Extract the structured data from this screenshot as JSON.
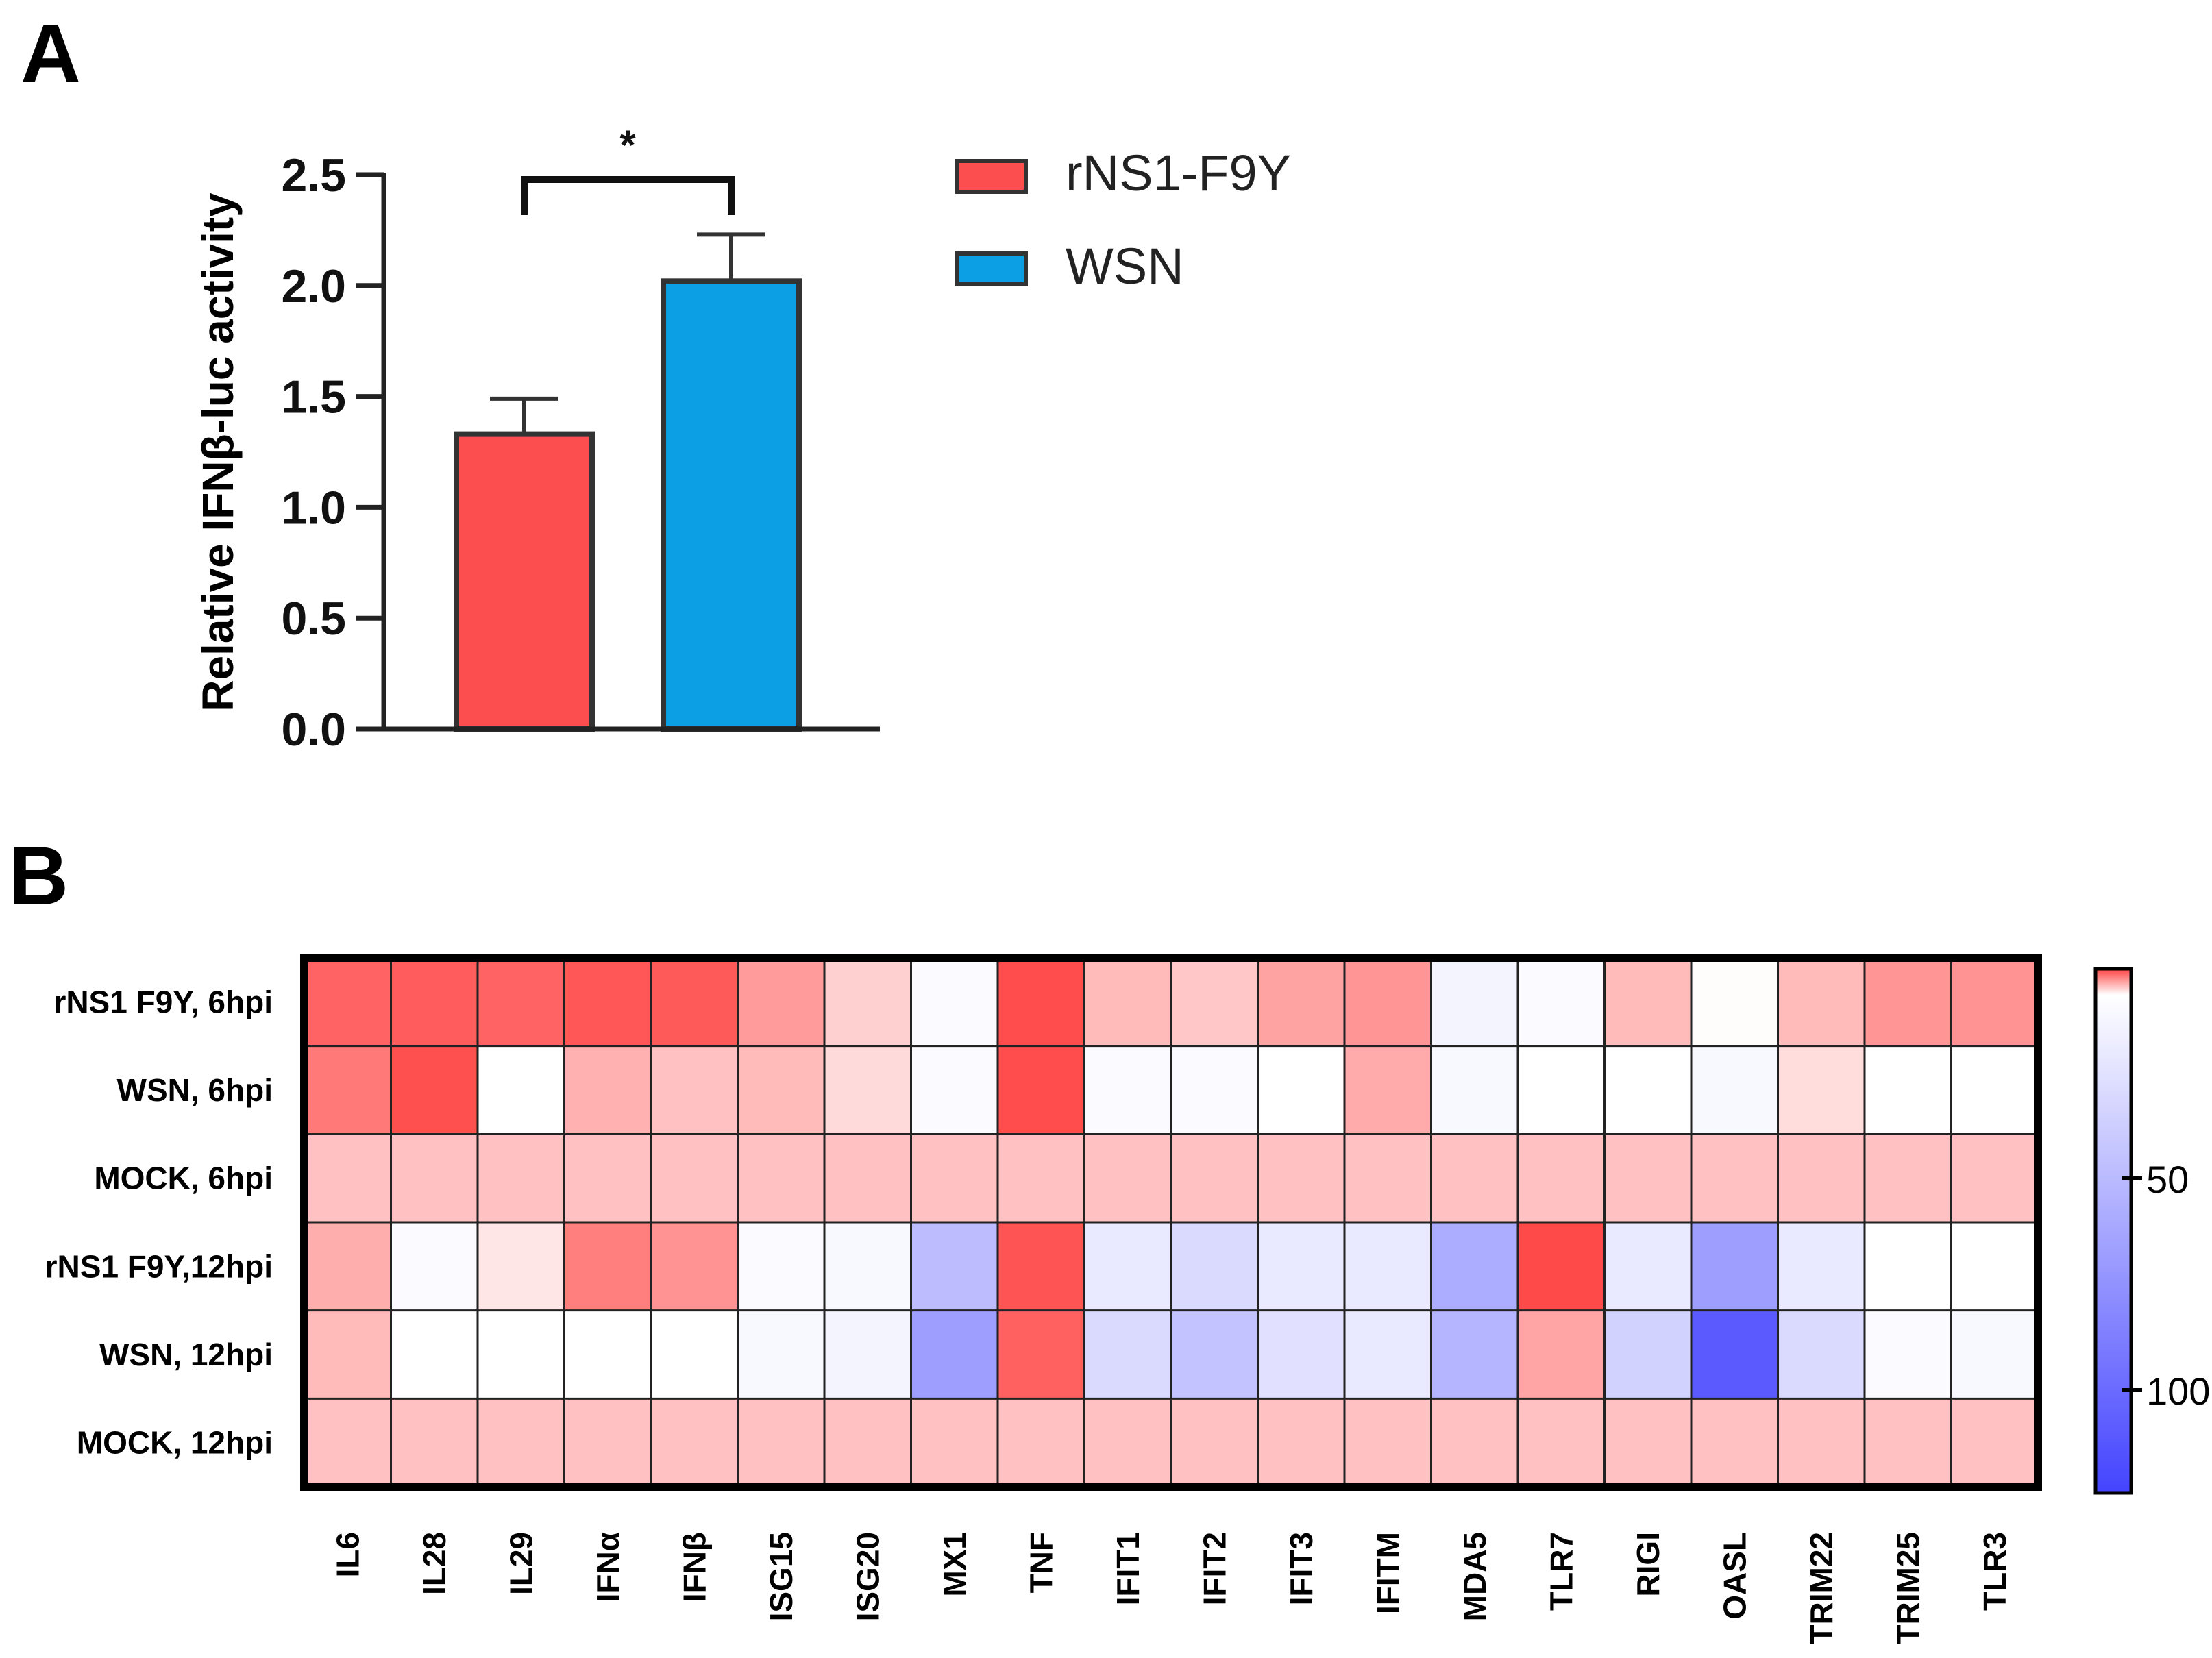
{
  "panels": {
    "a_label": "A",
    "b_label": "B"
  },
  "chart_data": [
    {
      "type": "bar",
      "panel": "A",
      "ylabel": "Relative IFNβ-luc activity",
      "ylim": [
        0,
        2.5
      ],
      "yticks": [
        0,
        0.5,
        1.0,
        1.5,
        2.0,
        2.5
      ],
      "ytick_labels": [
        "0.0",
        "0.5",
        "1.0",
        "1.5",
        "2.0",
        "2.5"
      ],
      "categories": [
        "rNS1-F9Y",
        "WSN"
      ],
      "values": [
        1.33,
        2.02
      ],
      "errors": [
        0.16,
        0.21
      ],
      "colors": [
        "#fc4d4f",
        "#0c9fe3"
      ],
      "legend": [
        "rNS1-F9Y",
        "WSN"
      ],
      "significance": "*"
    },
    {
      "type": "heatmap",
      "panel": "B",
      "rows": [
        "rNS1 F9Y, 6hpi",
        "WSN, 6hpi",
        "MOCK, 6hpi",
        "rNS1 F9Y,12hpi",
        "WSN, 12hpi",
        "MOCK, 12hpi"
      ],
      "columns": [
        "IL6",
        "IL28",
        "IL29",
        "IFNα",
        "IFNβ",
        "ISG15",
        "ISG20",
        "MX1",
        "TNF",
        "IFIT1",
        "IFIT2",
        "IFIT3",
        "IFITM",
        "MDA5",
        "TLR7",
        "RIGI",
        "OASL",
        "TRIM22",
        "TRIM25",
        "TLR3"
      ],
      "values": [
        [
          10,
          8,
          10,
          6,
          7,
          28,
          45,
          61,
          3,
          38,
          42,
          30,
          26,
          63,
          61,
          38,
          59,
          38,
          26,
          25
        ],
        [
          17,
          4,
          60,
          35,
          40,
          38,
          48,
          61,
          3,
          61,
          61,
          60,
          33,
          62,
          60,
          60,
          62,
          49,
          60,
          60
        ],
        [
          40,
          40,
          40,
          40,
          40,
          40,
          40,
          40,
          40,
          40,
          40,
          40,
          40,
          40,
          40,
          40,
          40,
          40,
          40,
          40
        ],
        [
          34,
          61,
          52,
          19,
          25,
          61,
          62,
          78,
          5,
          66,
          70,
          66,
          66,
          82,
          2,
          66,
          86,
          66,
          60,
          60
        ],
        [
          38,
          60,
          60,
          60,
          60,
          62,
          63,
          86,
          9,
          70,
          76,
          68,
          66,
          80,
          31,
          72,
          104,
          70,
          61,
          62
        ],
        [
          40,
          40,
          40,
          40,
          40,
          40,
          40,
          40,
          40,
          40,
          40,
          40,
          40,
          40,
          40,
          40,
          40,
          40,
          40,
          40
        ]
      ],
      "colorbar": {
        "ticks": [
          50,
          100
        ],
        "colors": {
          "low": "#ff4444",
          "mid": "#ffffff",
          "high": "#4444ff"
        }
      }
    }
  ]
}
